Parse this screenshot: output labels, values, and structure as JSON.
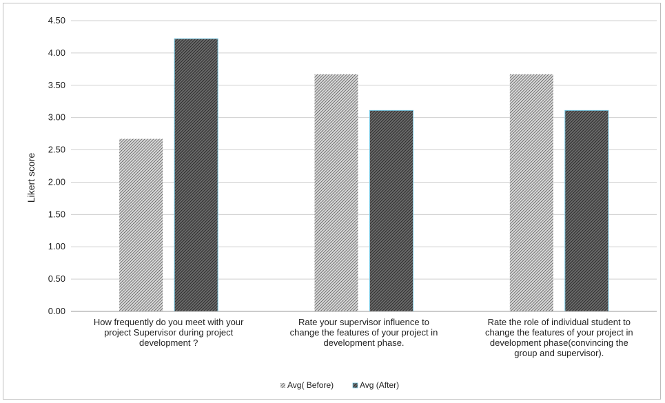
{
  "chart_data": {
    "type": "bar",
    "title": "",
    "ylabel": "Likert score",
    "xlabel": "",
    "ylim": [
      0,
      4.5
    ],
    "yticks": [
      "0.00",
      "0.50",
      "1.00",
      "1.50",
      "2.00",
      "2.50",
      "3.00",
      "3.50",
      "4.00",
      "4.50"
    ],
    "categories": [
      [
        "How frequently do you meet with  your",
        "project Supervisor during project",
        "development ?"
      ],
      [
        "Rate your supervisor influence to",
        "change the features of your project in",
        "development phase."
      ],
      [
        "Rate the role of individual student  to",
        "change the features of your project in",
        "development phase(convincing the",
        "group and supervisor)."
      ]
    ],
    "series": [
      {
        "name": "Avg( Before)",
        "values": [
          2.67,
          3.67,
          3.67
        ],
        "color": "#9a9a9a",
        "pattern": "light-hatch"
      },
      {
        "name": "Avg (After)",
        "values": [
          4.22,
          3.11,
          3.11
        ],
        "color": "#3a3a3a",
        "pattern": "dark-hatch",
        "edge": "#6fc3df"
      }
    ],
    "grid": true,
    "legend_position": "bottom"
  }
}
